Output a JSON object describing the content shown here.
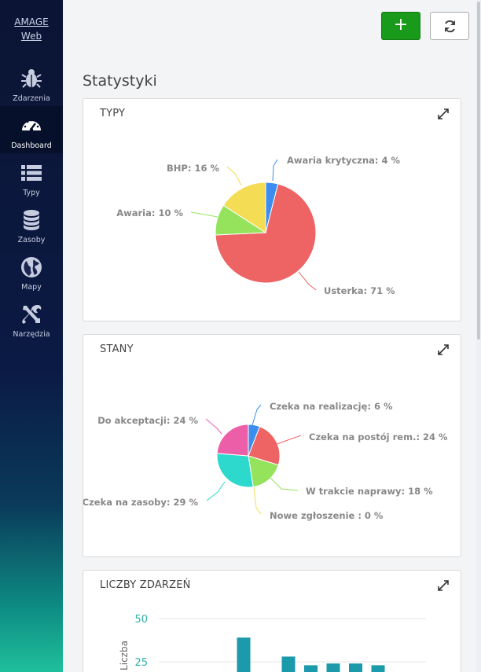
{
  "app": {
    "logo_line1": "AMAGE",
    "logo_line2": "Web"
  },
  "sidebar": {
    "items": [
      {
        "label": "Zdarzenia",
        "icon": "bug-icon"
      },
      {
        "label": "Dashboard",
        "icon": "dashboard-icon",
        "active": true
      },
      {
        "label": "Typy",
        "icon": "list-icon"
      },
      {
        "label": "Zasoby",
        "icon": "database-icon"
      },
      {
        "label": "Mapy",
        "icon": "globe-icon"
      },
      {
        "label": "Narzędzia",
        "icon": "tools-icon"
      }
    ]
  },
  "toolbar": {
    "add_label": "+",
    "refresh_icon": "refresh-icon"
  },
  "page": {
    "title": "Statystyki"
  },
  "panels": {
    "typy": {
      "title": "TYPY"
    },
    "stany": {
      "title": "STANY"
    },
    "liczby": {
      "title": "LICZBY ZDARZEŃ"
    }
  },
  "chart_data": [
    {
      "type": "pie",
      "title": "TYPY",
      "slices": [
        {
          "label": "Awaria krytyczna: 4 %",
          "value": 4,
          "color": "#3b8ef0"
        },
        {
          "label": "Usterka: 71 %",
          "value": 71,
          "color": "#ee6363"
        },
        {
          "label": "Awaria: 10 %",
          "value": 10,
          "color": "#95e35c"
        },
        {
          "label": "BHP: 16 %",
          "value": 16,
          "color": "#f5dc55"
        }
      ]
    },
    {
      "type": "pie",
      "title": "STANY",
      "slices": [
        {
          "label": "Czeka na realizację: 6 %",
          "value": 6,
          "color": "#3b8ef0"
        },
        {
          "label": "Czeka na postój rem.: 24 %",
          "value": 24,
          "color": "#ee6363"
        },
        {
          "label": "W trakcie naprawy: 18 %",
          "value": 18,
          "color": "#95e35c"
        },
        {
          "label": "Nowe zgłoszenie : 0 %",
          "value": 0,
          "color": "#f5dc55"
        },
        {
          "label": "Czeka na zasoby: 29 %",
          "value": 29,
          "color": "#2dd9cc"
        },
        {
          "label": "Do akceptacji: 24 %",
          "value": 24,
          "color": "#ec5fa8"
        }
      ]
    },
    {
      "type": "bar",
      "title": "LICZBY ZDARZEŃ",
      "ylabel": "Liczba",
      "yticks": [
        25,
        50
      ],
      "ylim": [
        0,
        50
      ],
      "values": [
        0,
        0,
        0,
        39,
        0,
        28,
        23,
        24,
        24,
        23,
        0,
        0
      ],
      "color": "#1a9aaa"
    }
  ]
}
